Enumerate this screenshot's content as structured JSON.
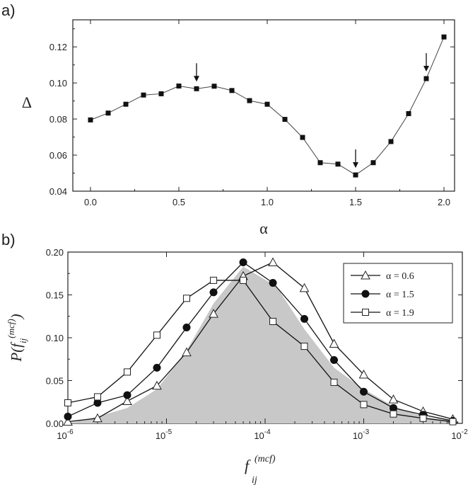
{
  "chart_data": [
    {
      "panel_label": "a)",
      "type": "line",
      "xlabel": "α",
      "ylabel": "Δ",
      "xlim": [
        -0.1,
        2.06
      ],
      "ylim": [
        0.04,
        0.135
      ],
      "xticks": [
        {
          "v": 0.0,
          "label": "0.0"
        },
        {
          "v": 0.5,
          "label": "0.5"
        },
        {
          "v": 1.0,
          "label": "1.0"
        },
        {
          "v": 1.5,
          "label": "1.5"
        },
        {
          "v": 2.0,
          "label": "2.0"
        }
      ],
      "yticks": [
        {
          "v": 0.04,
          "label": "0.04"
        },
        {
          "v": 0.06,
          "label": "0.06"
        },
        {
          "v": 0.08,
          "label": "0.08"
        },
        {
          "v": 0.1,
          "label": "0.10"
        },
        {
          "v": 0.12,
          "label": "0.12"
        }
      ],
      "x": [
        0.0,
        0.1,
        0.2,
        0.3,
        0.4,
        0.5,
        0.6,
        0.7,
        0.8,
        0.9,
        1.0,
        1.1,
        1.2,
        1.3,
        1.4,
        1.5,
        1.6,
        1.7,
        1.8,
        1.9,
        2.0
      ],
      "y": [
        0.0795,
        0.0833,
        0.0882,
        0.0933,
        0.094,
        0.0983,
        0.0968,
        0.0982,
        0.0958,
        0.0902,
        0.0882,
        0.0798,
        0.0698,
        0.0558,
        0.055,
        0.049,
        0.0558,
        0.0675,
        0.083,
        0.1024,
        0.1255
      ],
      "arrows_at_x": [
        0.6,
        1.5,
        1.9
      ],
      "grid": false
    },
    {
      "panel_label": "b)",
      "type": "line",
      "xscale": "log",
      "xlabel": "f_ij^(mcf)",
      "ylabel": "P(f_ij^(mcf))",
      "xlim": [
        1e-06,
        0.01
      ],
      "ylim": [
        0,
        0.2
      ],
      "xticks": [
        {
          "v": 1e-06,
          "base": "10",
          "exp": "-6"
        },
        {
          "v": 1e-05,
          "base": "10",
          "exp": "-5"
        },
        {
          "v": 0.0001,
          "base": "10",
          "exp": "-4"
        },
        {
          "v": 0.001,
          "base": "10",
          "exp": "-3"
        },
        {
          "v": 0.01,
          "base": "10",
          "exp": "-2"
        }
      ],
      "yticks": [
        {
          "v": 0.0,
          "label": "0.00"
        },
        {
          "v": 0.05,
          "label": "0.05"
        },
        {
          "v": 0.1,
          "label": "0.10"
        },
        {
          "v": 0.15,
          "label": "0.15"
        },
        {
          "v": 0.2,
          "label": "0.20"
        }
      ],
      "legend_position": "top-right",
      "shaded_area": {
        "color": "#c8c8c8",
        "x": [
          1e-06,
          2e-06,
          4e-06,
          8e-06,
          1.6e-05,
          3e-05,
          6e-05,
          0.00013,
          0.00025,
          0.0005,
          0.001,
          0.002,
          0.004,
          0.008
        ],
        "y": [
          0.0,
          0.008,
          0.018,
          0.04,
          0.085,
          0.14,
          0.183,
          0.16,
          0.11,
          0.065,
          0.04,
          0.02,
          0.008,
          0.003
        ]
      },
      "series": [
        {
          "name": "α = 0.6",
          "marker": "open-triangle",
          "x": [
            1e-06,
            2e-06,
            4e-06,
            8e-06,
            1.6e-05,
            3e-05,
            6e-05,
            0.00012,
            0.00025,
            0.0005,
            0.001,
            0.002,
            0.004,
            0.008
          ],
          "y": [
            0.002,
            0.006,
            0.026,
            0.044,
            0.083,
            0.128,
            0.172,
            0.188,
            0.158,
            0.093,
            0.057,
            0.028,
            0.014,
            0.005
          ]
        },
        {
          "name": "α = 1.5",
          "marker": "filled-circle",
          "x": [
            1e-06,
            2e-06,
            4e-06,
            8e-06,
            1.6e-05,
            3e-05,
            6e-05,
            0.00012,
            0.00025,
            0.0005,
            0.001,
            0.002,
            0.004,
            0.008
          ],
          "y": [
            0.008,
            0.024,
            0.033,
            0.065,
            0.112,
            0.153,
            0.188,
            0.164,
            0.122,
            0.074,
            0.037,
            0.018,
            0.01,
            0.003
          ]
        },
        {
          "name": "α = 1.9",
          "marker": "open-square",
          "x": [
            1e-06,
            2e-06,
            4e-06,
            8e-06,
            1.6e-05,
            3e-05,
            6e-05,
            0.00012,
            0.00025,
            0.0005,
            0.001,
            0.002,
            0.004,
            0.008
          ],
          "y": [
            0.024,
            0.031,
            0.06,
            0.103,
            0.146,
            0.167,
            0.167,
            0.119,
            0.09,
            0.048,
            0.022,
            0.011,
            0.006,
            0.002
          ]
        }
      ]
    }
  ]
}
